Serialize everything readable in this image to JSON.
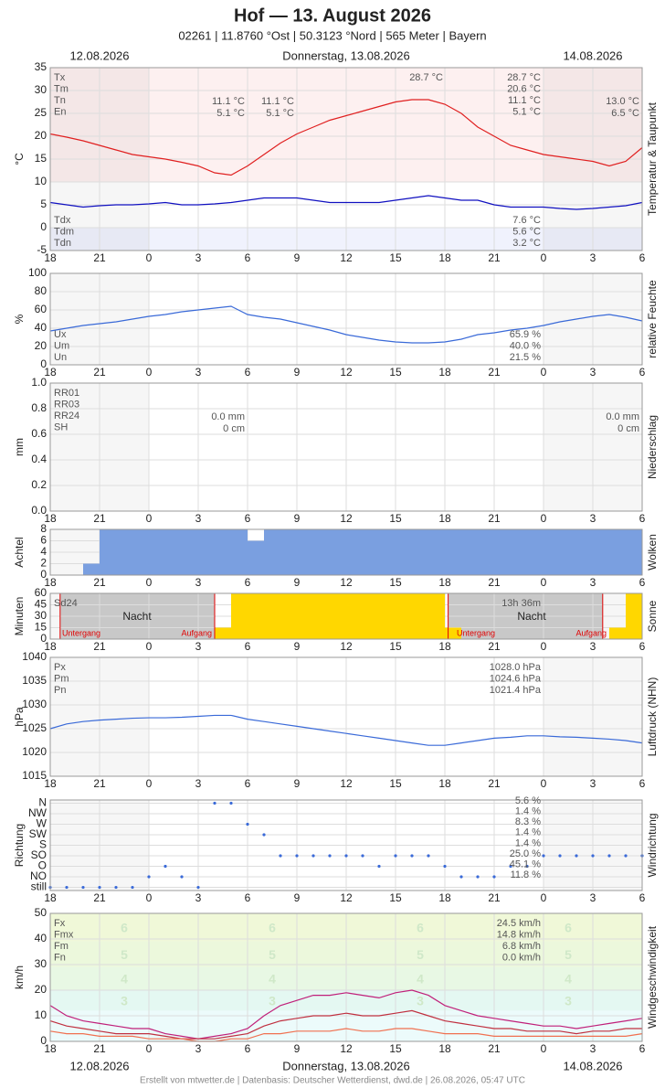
{
  "header": {
    "title": "Hof  —  13. August 2026",
    "subtitle": "02261  |  11.8760 °Ost  |  50.3123 °Nord  |  565 Meter  |  Bayern"
  },
  "dates": [
    "12.08.2026",
    "Donnerstag, 13.08.2026",
    "14.08.2026"
  ],
  "footer": "Erstellt von mtwetter.de | Datenbasis: Deutscher Wetterdienst, dwd.de | 26.08.2026, 05:47 UTC",
  "x_axis": {
    "xlim": [
      0,
      36
    ],
    "xticks": [
      {
        "value": 0,
        "label": "18"
      },
      {
        "value": 3,
        "label": "21"
      },
      {
        "value": 6,
        "label": "0"
      },
      {
        "value": 9,
        "label": "3"
      },
      {
        "value": 12,
        "label": "6"
      },
      {
        "value": 15,
        "label": "9"
      },
      {
        "value": 18,
        "label": "12"
      },
      {
        "value": 21,
        "label": "15"
      },
      {
        "value": 24,
        "label": "18"
      },
      {
        "value": 27,
        "label": "21"
      },
      {
        "value": 30,
        "label": "0"
      },
      {
        "value": 33,
        "label": "3"
      },
      {
        "value": 36,
        "label": "6"
      }
    ],
    "x": [
      0,
      1,
      2,
      3,
      4,
      5,
      6,
      7,
      8,
      9,
      10,
      11,
      12,
      13,
      14,
      15,
      16,
      17,
      18,
      19,
      20,
      21,
      22,
      23,
      24,
      25,
      26,
      27,
      28,
      29,
      30,
      31,
      32,
      33,
      34,
      35,
      36
    ]
  },
  "chart_data": [
    {
      "type": "line",
      "ylabel": "°C",
      "side_label": "Temperatur & Taupunkt",
      "ylim": [
        -5,
        35
      ],
      "yticks": [
        -5,
        0,
        5,
        10,
        15,
        20,
        25,
        30,
        35
      ],
      "series": [
        {
          "name": "Tm",
          "color": "#e02020",
          "values": [
            20.5,
            19.8,
            19,
            18,
            17,
            16,
            15.5,
            15,
            14.3,
            13.5,
            12,
            11.5,
            13.5,
            16,
            18.5,
            20.5,
            22,
            23.5,
            24.5,
            25.5,
            26.5,
            27.5,
            28,
            28,
            27,
            25,
            22,
            20,
            18,
            17,
            16,
            15.5,
            15,
            14.5,
            13.5,
            14.5,
            17.5
          ]
        },
        {
          "name": "Tdm",
          "color": "#1010c0",
          "values": [
            5.5,
            5,
            4.5,
            4.8,
            5,
            5,
            5.2,
            5.5,
            5,
            5,
            5.2,
            5.5,
            6,
            6.5,
            6.5,
            6.5,
            6,
            5.5,
            5.5,
            5.5,
            5.5,
            6,
            6.5,
            7,
            6.5,
            6,
            6,
            5,
            4.5,
            4.5,
            4.5,
            4.2,
            4,
            4.2,
            4.5,
            4.8,
            5.5
          ]
        }
      ],
      "stats_labels": [
        "Tx",
        "Tm",
        "Tn",
        "En"
      ],
      "stats": [
        "28.7 °C",
        "20.6 °C",
        "11.1 °C",
        "5.1 °C"
      ],
      "stats2_labels": [
        "Tdx",
        "Tdm",
        "Tdn"
      ],
      "stats2": [
        "7.6 °C",
        "5.6 °C",
        "3.2 °C"
      ],
      "notes": [
        "28.7 °C",
        "11.1 °C",
        "5.1 °C",
        "11.1 °C",
        "5.1 °C",
        "13.0 °C",
        "6.5 °C"
      ]
    },
    {
      "type": "line",
      "ylabel": "%",
      "side_label": "relative Feuchte",
      "ylim": [
        0,
        100
      ],
      "yticks": [
        0,
        20,
        40,
        60,
        80,
        100
      ],
      "series": [
        {
          "name": "Um",
          "color": "#3a6ad8",
          "values": [
            37,
            40,
            43,
            45,
            47,
            50,
            53,
            55,
            58,
            60,
            62,
            64,
            55,
            52,
            50,
            46,
            42,
            38,
            33,
            30,
            27,
            25,
            24,
            24,
            25,
            28,
            33,
            35,
            38,
            40,
            43,
            47,
            50,
            53,
            55,
            52,
            48
          ]
        }
      ],
      "stats2_labels": [
        "Ux",
        "Um",
        "Un"
      ],
      "stats2": [
        "65.9 %",
        "40.0 %",
        "21.5 %"
      ]
    },
    {
      "type": "line",
      "ylabel": "mm",
      "side_label": "Niederschlag",
      "ylim": [
        0,
        1
      ],
      "yticks": [
        {
          "value": 0,
          "label": "0.0"
        },
        {
          "value": 0.2,
          "label": "0.2"
        },
        {
          "value": 0.4,
          "label": "0.4"
        },
        {
          "value": 0.6,
          "label": "0.6"
        },
        {
          "value": 0.8,
          "label": "0.8"
        },
        {
          "value": 1,
          "label": "1.0"
        }
      ],
      "series": [],
      "stats_labels": [
        "RR01",
        "RR03",
        "RR24",
        "SH"
      ],
      "notes": [
        "0.0 mm",
        "0 cm",
        "0.0 mm",
        "0 cm"
      ]
    },
    {
      "type": "bar",
      "ylabel": "Achtel",
      "side_label": "Wolken",
      "ylim": [
        0,
        8
      ],
      "yticks": [
        0,
        2,
        4,
        6,
        8
      ],
      "x": [
        0,
        1,
        2,
        3,
        4,
        5,
        6,
        7,
        8,
        9,
        10,
        11,
        12,
        13,
        14,
        15,
        16,
        17,
        18,
        19,
        20,
        21,
        22,
        23,
        24,
        25,
        26,
        27,
        28,
        29,
        30,
        31,
        32,
        33,
        34,
        35
      ],
      "series": [
        {
          "name": "Wolken",
          "color": "#7a9fe0",
          "values": [
            0,
            0,
            2,
            8,
            8,
            8,
            8,
            8,
            8,
            8,
            8,
            8,
            6,
            8,
            8,
            8,
            8,
            8,
            8,
            8,
            8,
            8,
            8,
            8,
            8,
            8,
            8,
            8,
            8,
            8,
            8,
            8,
            8,
            8,
            8,
            8
          ]
        }
      ]
    },
    {
      "type": "bar",
      "ylabel": "Minuten",
      "side_label": "Sonne",
      "ylim": [
        0,
        60
      ],
      "yticks": [
        0,
        15,
        30,
        45,
        60
      ],
      "x": [
        0,
        1,
        2,
        3,
        4,
        5,
        6,
        7,
        8,
        9,
        10,
        11,
        12,
        13,
        14,
        15,
        16,
        17,
        18,
        19,
        20,
        21,
        22,
        23,
        24,
        25,
        26,
        27,
        28,
        29,
        30,
        31,
        32,
        33,
        34,
        35
      ],
      "series": [
        {
          "name": "Sonne",
          "color": "#ffd700",
          "values": [
            0,
            0,
            0,
            0,
            0,
            0,
            0,
            0,
            0,
            0,
            15,
            60,
            60,
            60,
            60,
            60,
            60,
            60,
            60,
            60,
            60,
            60,
            60,
            60,
            15,
            0,
            0,
            0,
            0,
            0,
            0,
            0,
            0,
            0,
            15,
            60
          ]
        }
      ],
      "notes": [
        "Sd24",
        "13h 36m",
        "Nacht",
        "Nacht",
        "Untergang",
        "Aufgang",
        "Untergang",
        "Aufgang"
      ]
    },
    {
      "type": "line",
      "ylabel": "hPa",
      "side_label": "Luftdruck (NHN)",
      "ylim": [
        1015,
        1040
      ],
      "yticks": [
        1015,
        1020,
        1025,
        1030,
        1035,
        1040
      ],
      "series": [
        {
          "name": "Pm",
          "color": "#3a6ad8",
          "values": [
            1025,
            1026,
            1026.5,
            1026.8,
            1027,
            1027.2,
            1027.3,
            1027.3,
            1027.4,
            1027.6,
            1027.8,
            1027.8,
            1027,
            1026.5,
            1026,
            1025.5,
            1025,
            1024.5,
            1024,
            1023.5,
            1023,
            1022.5,
            1022,
            1021.5,
            1021.5,
            1022,
            1022.5,
            1023,
            1023.2,
            1023.5,
            1023.5,
            1023.3,
            1023.2,
            1023,
            1022.8,
            1022.5,
            1022
          ]
        }
      ],
      "stats_labels": [
        "Px",
        "Pm",
        "Pn"
      ],
      "stats": [
        "1028.0 hPa",
        "1024.6 hPa",
        "1021.4 hPa"
      ]
    },
    {
      "type": "scatter",
      "ylabel": "Richtung",
      "side_label": "Windrichtung",
      "ylim": [
        -0.3,
        8.3
      ],
      "yticks": [
        {
          "value": 0,
          "label": "still"
        },
        {
          "value": 1,
          "label": "NO"
        },
        {
          "value": 2,
          "label": "O"
        },
        {
          "value": 3,
          "label": "SO"
        },
        {
          "value": 4,
          "label": "S"
        },
        {
          "value": 5,
          "label": "SW"
        },
        {
          "value": 6,
          "label": "W"
        },
        {
          "value": 7,
          "label": "NW"
        },
        {
          "value": 8,
          "label": "N"
        }
      ],
      "series": [
        {
          "name": "Richtung",
          "color": "#3a6ad8",
          "values": [
            0,
            0,
            0,
            0,
            0,
            0,
            1,
            2,
            1,
            0,
            8,
            8,
            6,
            5,
            3,
            3,
            3,
            3,
            3,
            3,
            2,
            3,
            3,
            3,
            2,
            1,
            1,
            1,
            2,
            2,
            3,
            3,
            3,
            3,
            3,
            3,
            3
          ]
        }
      ],
      "stats": [
        "5.6 %",
        "1.4 %",
        "8.3 %",
        "1.4 %",
        "1.4 %",
        "25.0 %",
        "45.1 %",
        "11.8 %"
      ]
    },
    {
      "type": "line",
      "ylabel": "km/h",
      "side_label": "Windgeschwindigkeit",
      "ylim": [
        0,
        50
      ],
      "yticks": [
        0,
        10,
        20,
        30,
        40,
        50
      ],
      "beaufort": [
        {
          "label": "3",
          "range": [
            12,
            19
          ]
        },
        {
          "label": "4",
          "range": [
            20,
            28
          ]
        },
        {
          "label": "5",
          "range": [
            29,
            38
          ]
        },
        {
          "label": "6",
          "range": [
            39,
            49
          ]
        }
      ],
      "series": [
        {
          "name": "Fx",
          "color": "#c0207a",
          "values": [
            14,
            10,
            8,
            7,
            6,
            5,
            5,
            3,
            2,
            1,
            2,
            3,
            5,
            10,
            14,
            16,
            18,
            18,
            19,
            18,
            17,
            19,
            20,
            18,
            14,
            12,
            10,
            9,
            8,
            7,
            6,
            6,
            5,
            6,
            7,
            8,
            9
          ]
        },
        {
          "name": "Fmx",
          "color": "#c03040",
          "values": [
            8,
            6,
            5,
            4,
            3,
            3,
            3,
            2,
            1,
            1,
            1,
            2,
            3,
            6,
            8,
            9,
            10,
            10,
            11,
            10,
            10,
            11,
            12,
            10,
            8,
            7,
            6,
            5,
            5,
            4,
            4,
            4,
            3,
            4,
            4,
            5,
            5
          ]
        },
        {
          "name": "Fm",
          "color": "#f07050",
          "values": [
            4,
            3,
            3,
            2,
            2,
            2,
            1,
            1,
            1,
            0,
            0,
            1,
            1,
            3,
            3,
            4,
            4,
            4,
            5,
            4,
            4,
            5,
            5,
            4,
            3,
            3,
            3,
            2,
            2,
            2,
            2,
            2,
            2,
            2,
            2,
            2,
            3
          ]
        }
      ],
      "stats_labels": [
        "Fx",
        "Fmx",
        "Fm",
        "Fn"
      ],
      "stats": [
        "24.5 km/h",
        "14.8 km/h",
        "6.8 km/h",
        "0.0 km/h"
      ]
    }
  ]
}
